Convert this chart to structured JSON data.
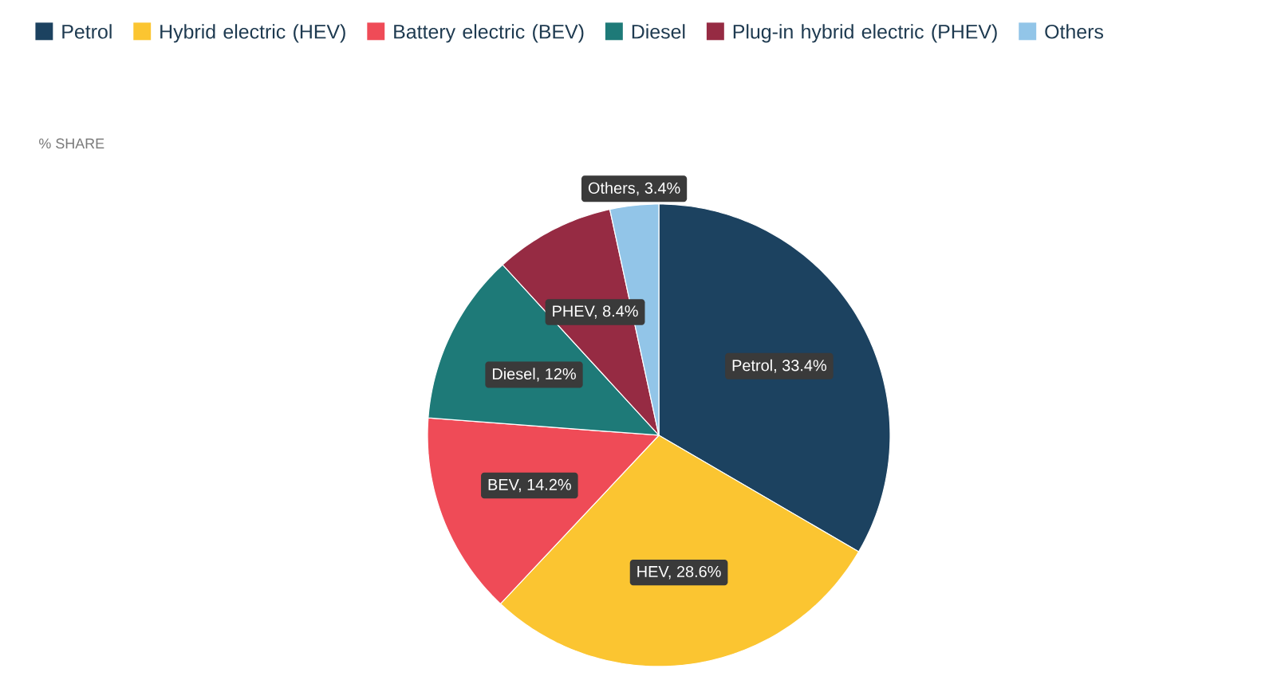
{
  "chart_data": {
    "type": "pie",
    "subtitle": "% SHARE",
    "categories": [
      "Petrol",
      "Hybrid electric (HEV)",
      "Battery electric (BEV)",
      "Diesel",
      "Plug-in hybrid electric (PHEV)",
      "Others"
    ],
    "values": [
      33.4,
      28.6,
      14.2,
      12,
      8.4,
      3.4
    ],
    "colors": [
      "#1c4260",
      "#fbc531",
      "#ef4b57",
      "#1e7a78",
      "#962b43",
      "#92c5e8"
    ],
    "value_labels": [
      "Petrol, 33.4%",
      "HEV, 28.6%",
      "BEV, 14.2%",
      "Diesel, 12%",
      "PHEV, 8.4%",
      "Others, 3.4%"
    ],
    "legend": "top left"
  }
}
